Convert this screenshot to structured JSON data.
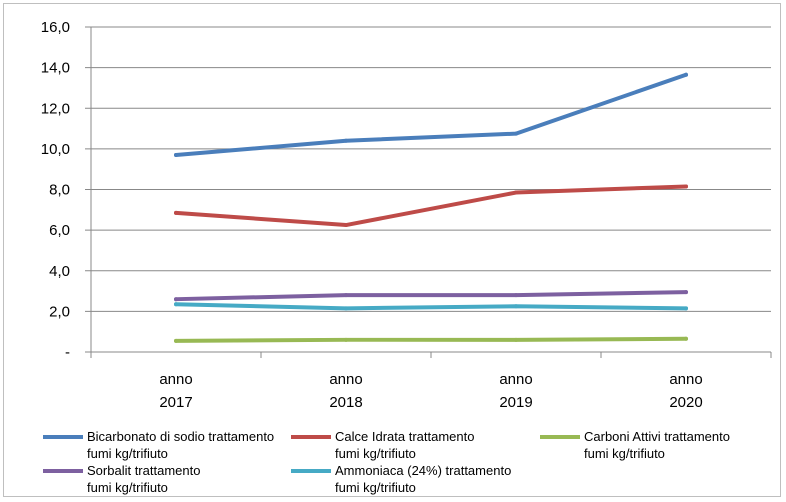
{
  "chart_data": {
    "type": "line",
    "categories": [
      [
        "anno",
        "2017"
      ],
      [
        "anno",
        "2018"
      ],
      [
        "anno",
        "2019"
      ],
      [
        "anno",
        "2020"
      ]
    ],
    "ylim": [
      0,
      16
    ],
    "yticks": [
      "-",
      "2,0",
      "4,0",
      "6,0",
      "8,0",
      "10,0",
      "12,0",
      "14,0",
      "16,0"
    ],
    "grid": true,
    "legend_position": "bottom",
    "series": [
      {
        "name": "Bicarbonato di sodio trattamento fumi kg/trifiuto",
        "name_lines": [
          "Bicarbonato di sodio trattamento",
          "fumi kg/trifiuto"
        ],
        "color": "#4a7ebb",
        "values": [
          9.7,
          10.4,
          10.75,
          13.65
        ]
      },
      {
        "name": "Calce Idrata trattamento fumi kg/trifiuto",
        "name_lines": [
          "Calce Idrata trattamento",
          "fumi kg/trifiuto"
        ],
        "color": "#be4b48",
        "values": [
          6.85,
          6.25,
          7.85,
          8.15
        ]
      },
      {
        "name": "Carboni Attivi trattamento fumi kg/trifiuto",
        "name_lines": [
          "Carboni Attivi trattamento",
          "fumi kg/trifiuto"
        ],
        "color": "#98b954",
        "values": [
          0.55,
          0.6,
          0.6,
          0.65
        ]
      },
      {
        "name": "Sorbalit trattamento fumi kg/trifiuto",
        "name_lines": [
          "Sorbalit trattamento",
          "fumi kg/trifiuto"
        ],
        "color": "#7d60a0",
        "values": [
          2.6,
          2.8,
          2.8,
          2.95
        ]
      },
      {
        "name": "Ammoniaca (24%) trattamento fumi kg/trifiuto",
        "name_lines": [
          "Ammoniaca (24%) trattamento",
          "fumi kg/trifiuto"
        ],
        "color": "#46aac5",
        "values": [
          2.35,
          2.15,
          2.25,
          2.15
        ]
      }
    ]
  }
}
